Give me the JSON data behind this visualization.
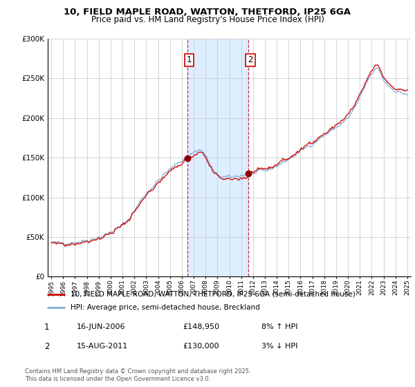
{
  "title": "10, FIELD MAPLE ROAD, WATTON, THETFORD, IP25 6GA",
  "subtitle": "Price paid vs. HM Land Registry's House Price Index (HPI)",
  "legend_line1": "10, FIELD MAPLE ROAD, WATTON, THETFORD, IP25 6GA (semi-detached house)",
  "legend_line2": "HPI: Average price, semi-detached house, Breckland",
  "footer": "Contains HM Land Registry data © Crown copyright and database right 2025.\nThis data is licensed under the Open Government Licence v3.0.",
  "sale1_date": "16-JUN-2006",
  "sale1_price": "£148,950",
  "sale1_hpi": "8% ↑ HPI",
  "sale2_date": "15-AUG-2011",
  "sale2_price": "£130,000",
  "sale2_hpi": "3% ↓ HPI",
  "red_color": "#cc0000",
  "blue_color": "#7eadd4",
  "shade_color": "#ddeeff",
  "ylim_min": 0,
  "ylim_max": 300000,
  "sale1_year": 2006.46,
  "sale2_year": 2011.62,
  "sale1_price_val": 148950,
  "sale2_price_val": 130000
}
